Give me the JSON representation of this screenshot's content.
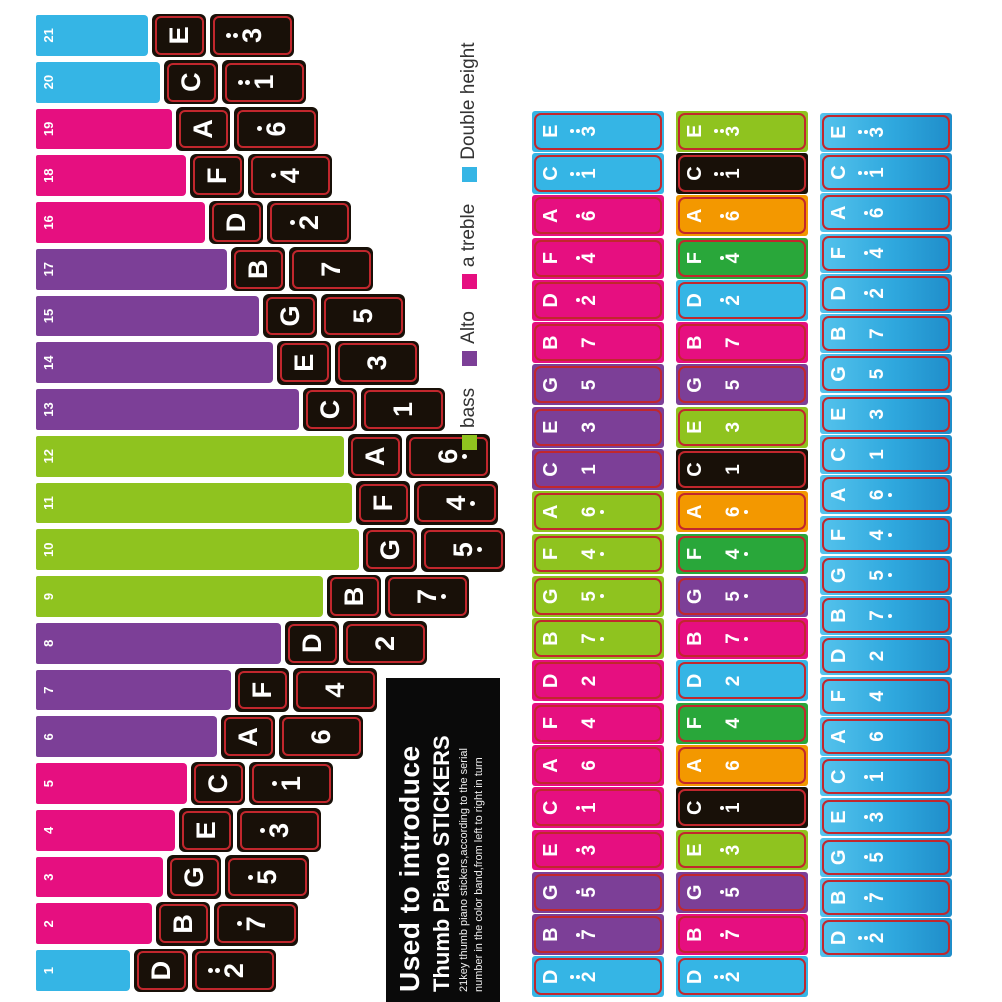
{
  "product": {
    "title_line1": "Used to introduce",
    "title_line2": "Thumb Piano STICKERS",
    "subtitle_line1": "21key thumb piano stickers,according to the serial",
    "subtitle_line2": "number in the color band,from left to right in turn"
  },
  "legend": [
    {
      "label": "bass",
      "color": "green"
    },
    {
      "label": "Alto",
      "color": "purple"
    },
    {
      "label": "a treble",
      "color": "pink"
    },
    {
      "label": "Double height",
      "color": "blue"
    }
  ],
  "colors": {
    "blue": "#35b5e5",
    "pink": "#e60f80",
    "purple": "#7c3f97",
    "green": "#8fc31f",
    "black": "#181008",
    "orange": "#f39800",
    "fgreen": "#29a73a",
    "egreen": "#8fc31f",
    "cut_line": "#c1272d",
    "sticker_black": "#181008"
  },
  "keys": [
    {
      "label": "1",
      "letter": "D",
      "digit": "2",
      "octave": 2,
      "group": "blue",
      "bar": 130,
      "stripA": "blue",
      "stripB": "blue"
    },
    {
      "label": "2",
      "letter": "B",
      "digit": "7",
      "octave": 1,
      "group": "pink",
      "bar": 152,
      "stripA": "purple",
      "stripB": "pink"
    },
    {
      "label": "3",
      "letter": "G",
      "digit": "5",
      "octave": 1,
      "group": "pink",
      "bar": 163,
      "stripA": "purple",
      "stripB": "purple"
    },
    {
      "label": "4",
      "letter": "E",
      "digit": "3",
      "octave": 1,
      "group": "pink",
      "bar": 175,
      "stripA": "pink",
      "stripB": "egreen"
    },
    {
      "label": "5",
      "letter": "C",
      "digit": "1",
      "octave": 1,
      "group": "pink",
      "bar": 187,
      "stripA": "pink",
      "stripB": "black"
    },
    {
      "label": "6",
      "letter": "A",
      "digit": "6",
      "octave": 0,
      "group": "purple",
      "bar": 217,
      "stripA": "pink",
      "stripB": "orange"
    },
    {
      "label": "7",
      "letter": "F",
      "digit": "4",
      "octave": 0,
      "group": "purple",
      "bar": 231,
      "stripA": "pink",
      "stripB": "fgreen"
    },
    {
      "label": "8",
      "letter": "D",
      "digit": "2",
      "octave": 0,
      "group": "purple",
      "bar": 281,
      "stripA": "pink",
      "stripB": "blue"
    },
    {
      "label": "9",
      "letter": "B",
      "digit": "7",
      "octave": -1,
      "group": "green",
      "bar": 323,
      "stripA": "green",
      "stripB": "pink"
    },
    {
      "label": "10",
      "letter": "G",
      "digit": "5",
      "octave": -1,
      "group": "green",
      "bar": 359,
      "stripA": "green",
      "stripB": "purple"
    },
    {
      "label": "11",
      "letter": "F",
      "digit": "4",
      "octave": -1,
      "group": "green",
      "bar": 352,
      "stripA": "green",
      "stripB": "fgreen"
    },
    {
      "label": "12",
      "letter": "A",
      "digit": "6",
      "octave": -1,
      "group": "green",
      "bar": 344,
      "stripA": "green",
      "stripB": "orange"
    },
    {
      "label": "13",
      "letter": "C",
      "digit": "1",
      "octave": 0,
      "group": "purple",
      "bar": 299,
      "stripA": "purple",
      "stripB": "black"
    },
    {
      "label": "14",
      "letter": "E",
      "digit": "3",
      "octave": 0,
      "group": "purple",
      "bar": 273,
      "stripA": "purple",
      "stripB": "egreen"
    },
    {
      "label": "15",
      "letter": "G",
      "digit": "5",
      "octave": 0,
      "group": "purple",
      "bar": 259,
      "stripA": "purple",
      "stripB": "purple"
    },
    {
      "label": "17",
      "letter": "B",
      "digit": "7",
      "octave": 0,
      "group": "purple",
      "bar": 227,
      "stripA": "pink",
      "stripB": "pink"
    },
    {
      "label": "16",
      "letter": "D",
      "digit": "2",
      "octave": 1,
      "group": "pink",
      "bar": 205,
      "stripA": "pink",
      "stripB": "blue"
    },
    {
      "label": "18",
      "letter": "F",
      "digit": "4",
      "octave": 1,
      "group": "pink",
      "bar": 186,
      "stripA": "pink",
      "stripB": "fgreen"
    },
    {
      "label": "19",
      "letter": "A",
      "digit": "6",
      "octave": 1,
      "group": "pink",
      "bar": 172,
      "stripA": "pink",
      "stripB": "orange"
    },
    {
      "label": "20",
      "letter": "C",
      "digit": "1",
      "octave": 2,
      "group": "blue",
      "bar": 160,
      "stripA": "blue",
      "stripB": "black"
    },
    {
      "label": "21",
      "letter": "E",
      "digit": "3",
      "octave": 2,
      "group": "blue",
      "bar": 148,
      "stripA": "blue",
      "stripB": "egreen"
    }
  ]
}
